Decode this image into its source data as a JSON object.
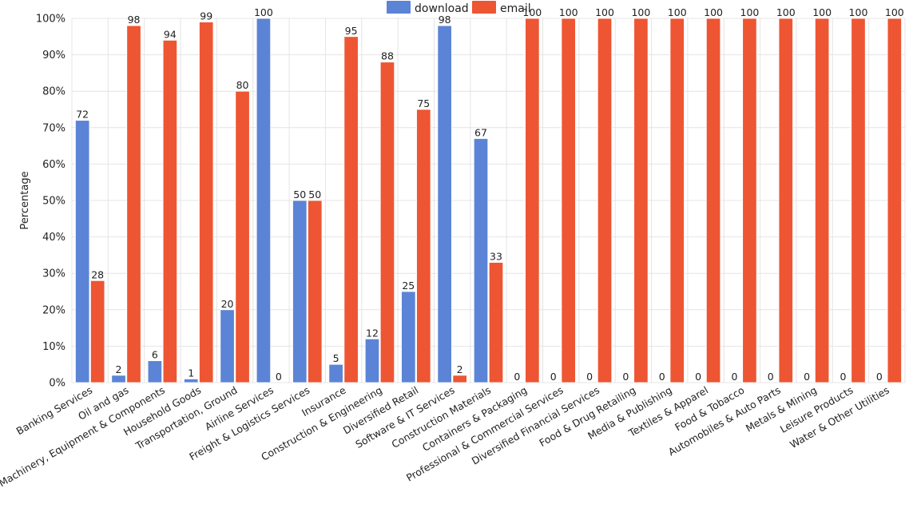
{
  "chart_data": {
    "type": "bar",
    "ylabel": "Percentage",
    "xlabel": "",
    "ylim": [
      0,
      100
    ],
    "yticks": [
      "0%",
      "10%",
      "20%",
      "30%",
      "40%",
      "50%",
      "60%",
      "70%",
      "80%",
      "90%",
      "100%"
    ],
    "legend_position": "top-center",
    "grid": true,
    "categories": [
      "Banking Services",
      "Oil and gas",
      "Machinery, Equipment & Components",
      "Household Goods",
      "Transportation, Ground",
      "Airline Services",
      "Freight & Logistics Services",
      "Insurance",
      "Construction & Engineering",
      "Diversified Retail",
      "Software & IT Services",
      "Construction Materials",
      "Containers & Packaging",
      "Professional & Commercial Services",
      "Diversified Financial Services",
      "Food & Drug Retailing",
      "Media & Publishing",
      "Textiles & Apparel",
      "Food & Tobacco",
      "Automobiles & Auto Parts",
      "Metals & Mining",
      "Leisure Products",
      "Water & Other Utilities"
    ],
    "series": [
      {
        "name": "download",
        "color": "#5b84d6",
        "values": [
          72,
          2,
          6,
          1,
          20,
          100,
          50,
          5,
          12,
          25,
          98,
          67,
          0,
          0,
          0,
          0,
          0,
          0,
          0,
          0,
          0,
          0,
          0
        ]
      },
      {
        "name": "email",
        "color": "#ee5533",
        "values": [
          28,
          98,
          94,
          99,
          80,
          0,
          50,
          95,
          88,
          75,
          2,
          33,
          100,
          100,
          100,
          100,
          100,
          100,
          100,
          100,
          100,
          100,
          100
        ]
      }
    ]
  }
}
